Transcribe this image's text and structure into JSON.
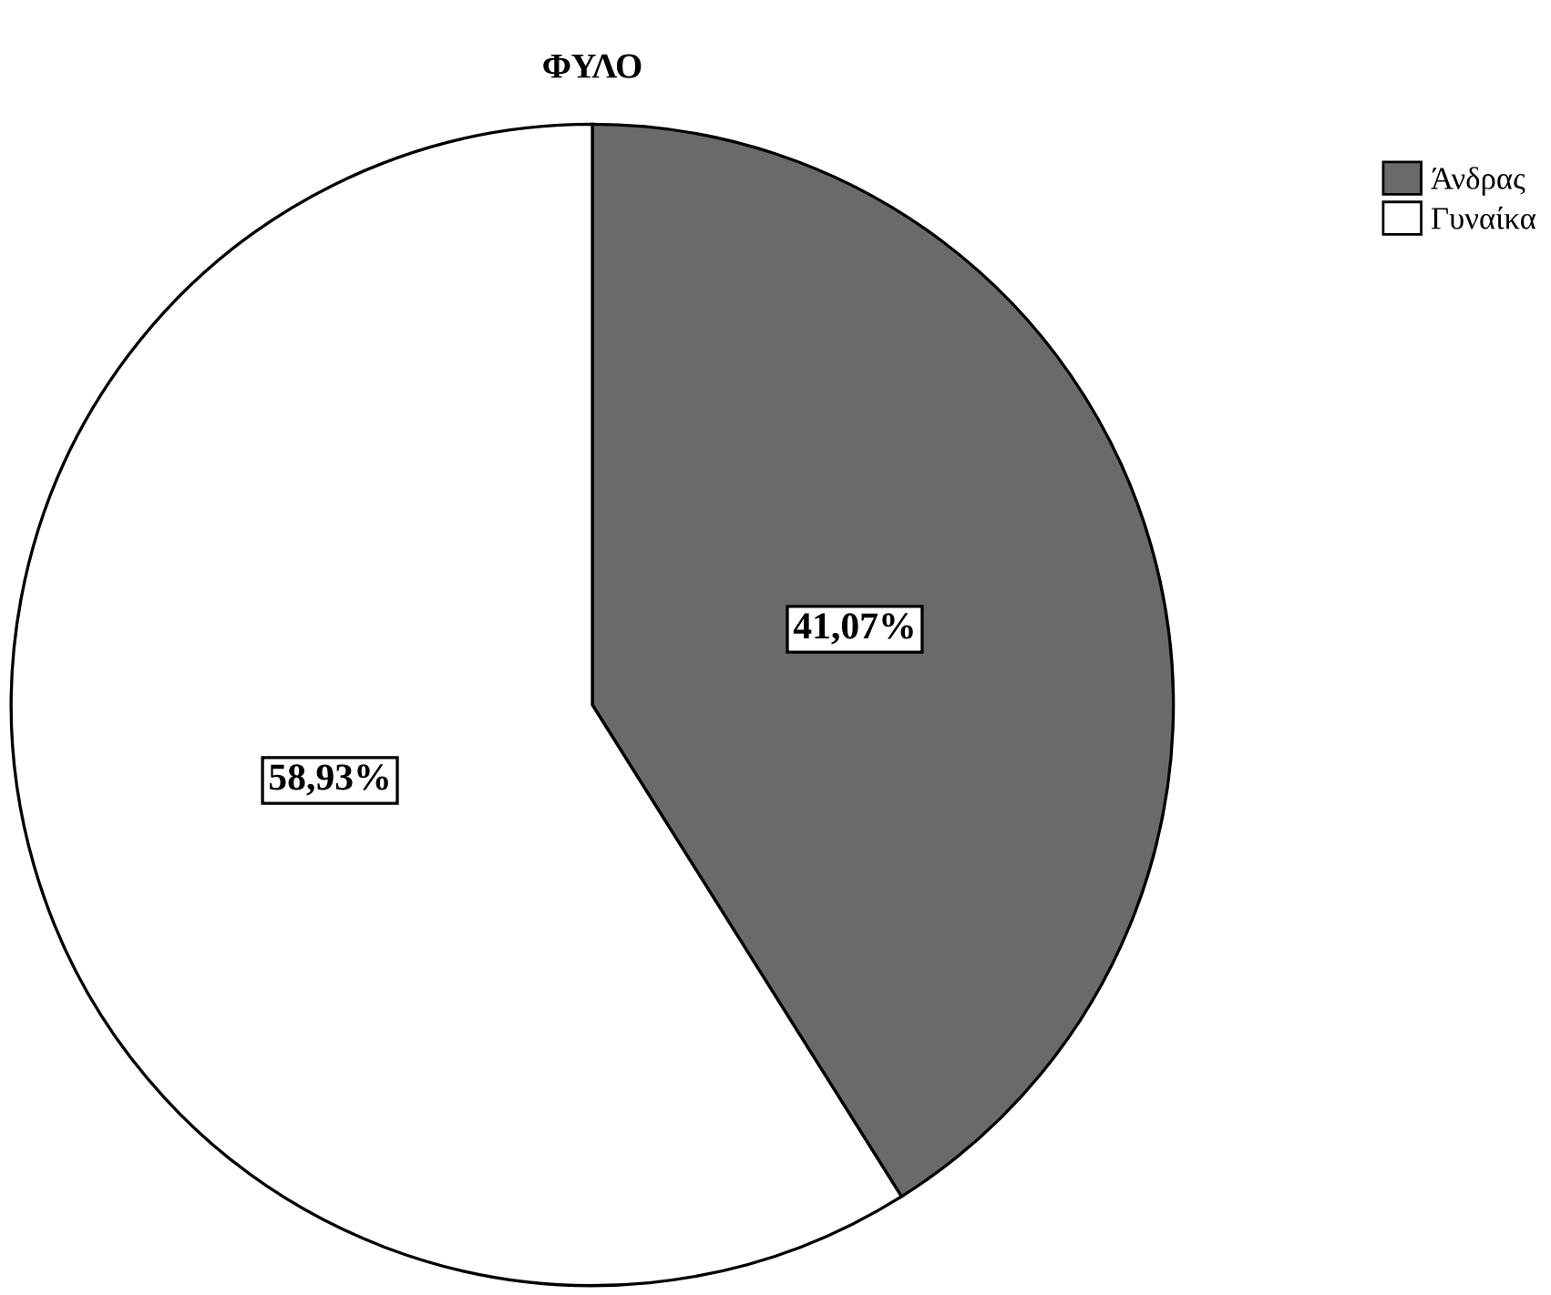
{
  "chart_data": {
    "type": "pie",
    "title": "ΦΥΛΟ",
    "categories": [
      "Άνδρας",
      "Γυναίκα"
    ],
    "values": [
      41.07,
      58.93
    ],
    "value_labels": [
      "41,07%",
      "58,93%"
    ],
    "colors": [
      "#6a6a6a",
      "#ffffff"
    ],
    "legend": "top right"
  }
}
